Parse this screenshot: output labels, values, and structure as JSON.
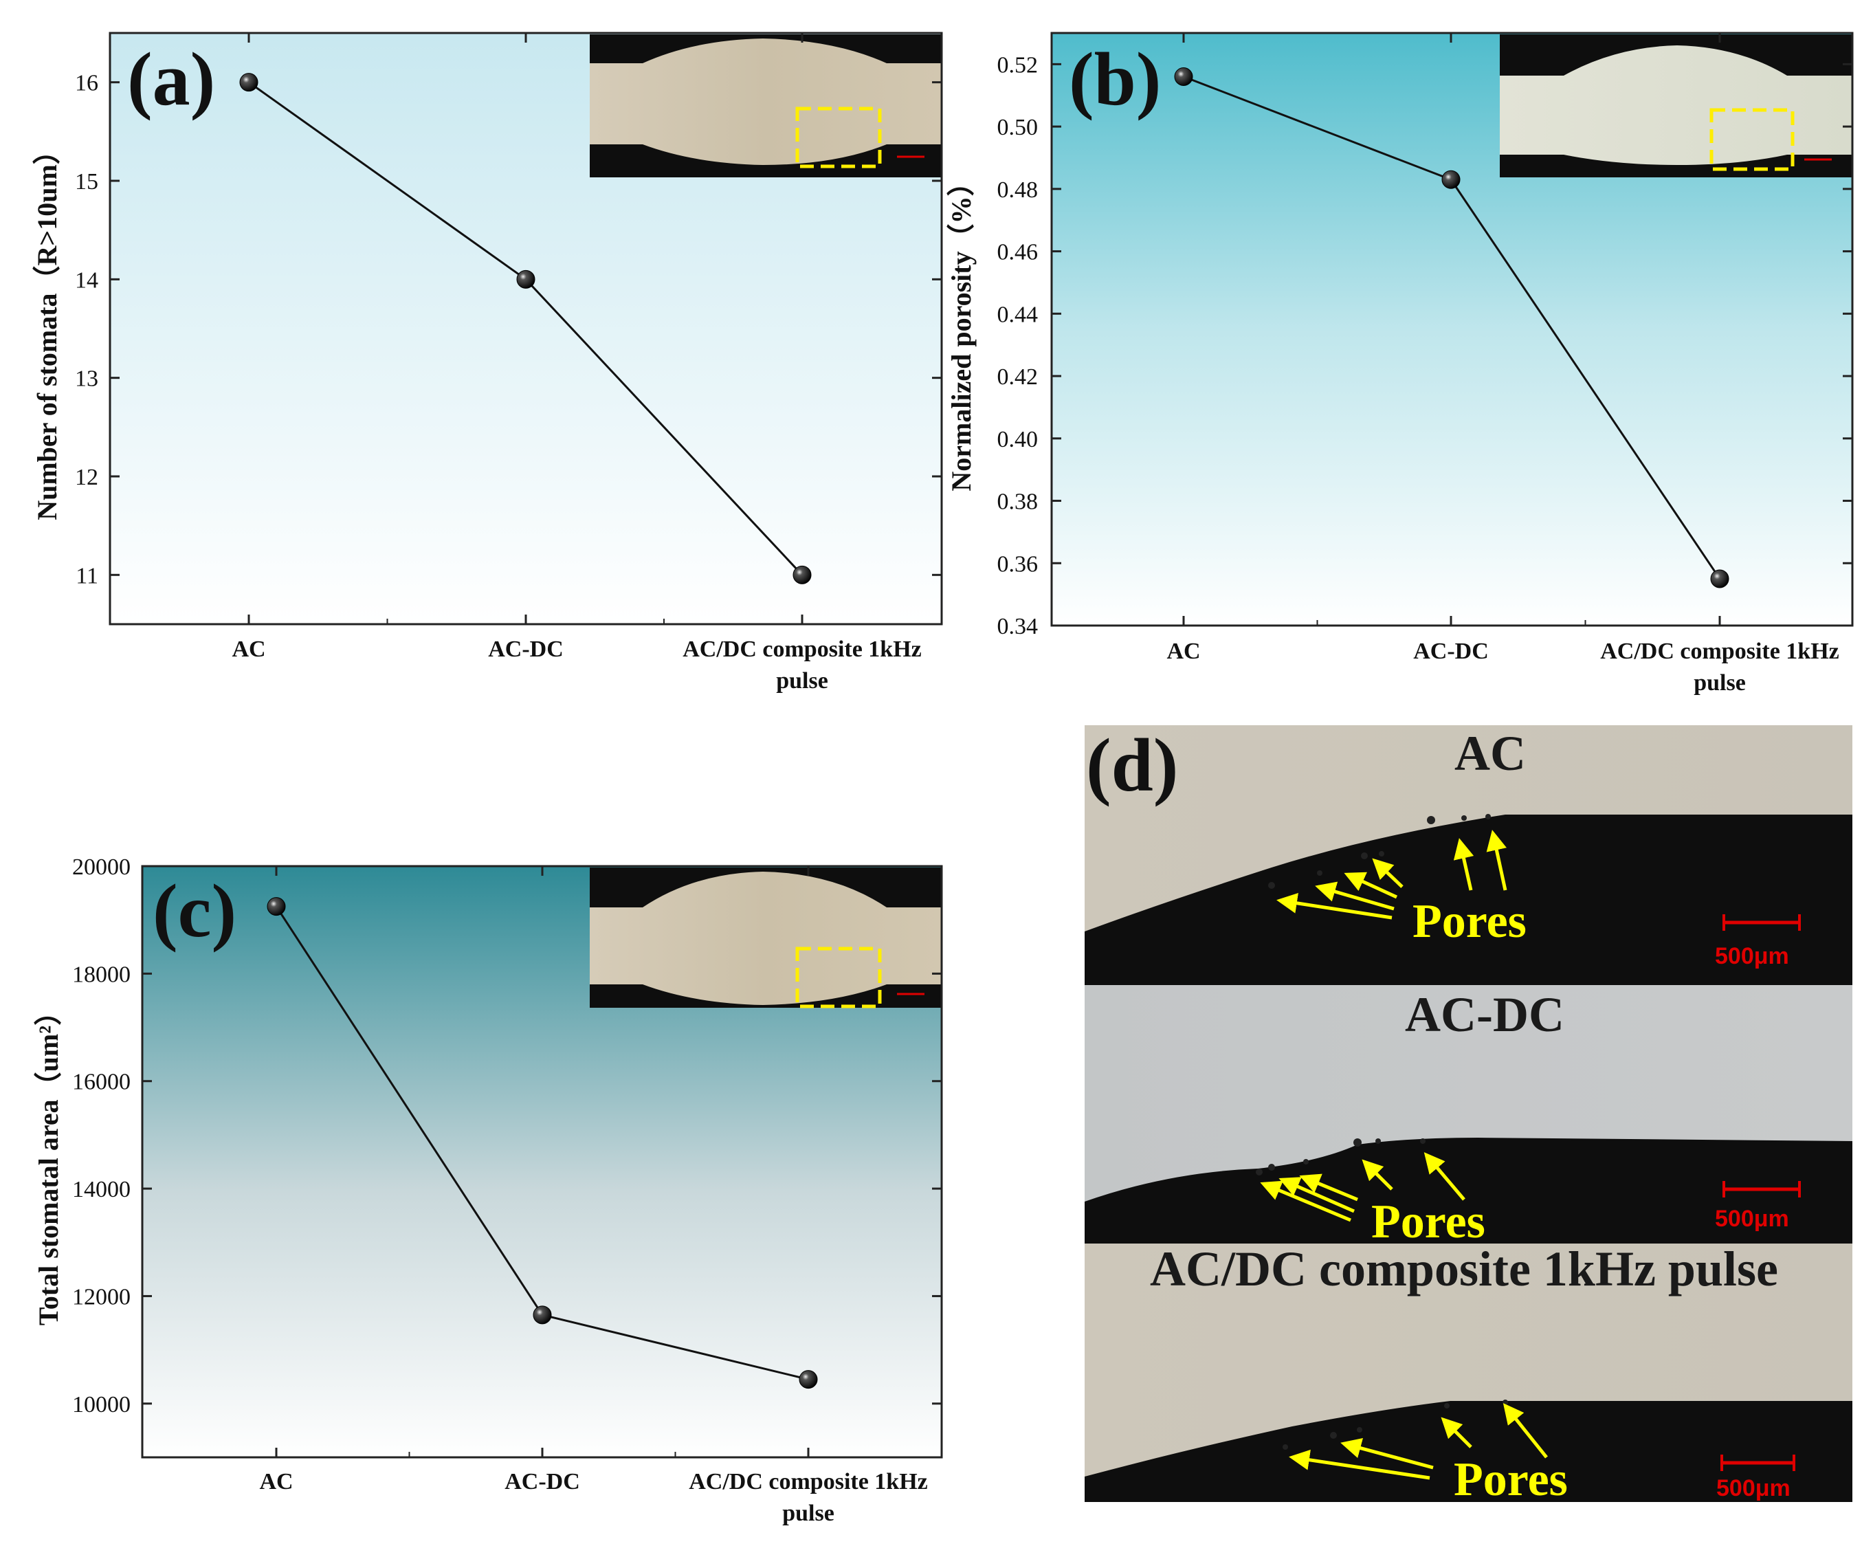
{
  "panels": {
    "a": {
      "label": "(a)",
      "ylabel": "Number of stomata（R>10um）"
    },
    "b": {
      "label": "(b)",
      "ylabel": "Normalized porosity（%）"
    },
    "c": {
      "label": "(c)",
      "ylabel": "Total stomatal area（um²）"
    },
    "d": {
      "label": "(d)",
      "sections": [
        {
          "title": "AC",
          "annotation": "Pores",
          "scale": "500μm"
        },
        {
          "title": "AC-DC",
          "annotation": "Pores",
          "scale": "500μm"
        },
        {
          "title": "AC/DC composite 1kHz pulse",
          "annotation": "Pores",
          "scale": "500μm"
        }
      ]
    }
  },
  "colors": {
    "panel_a_bg_top": "#c8e8f0",
    "panel_b_bg_top": "#4fbccc",
    "panel_c_bg_top": "#2e8a96",
    "line": "#111111",
    "marker": "#111111",
    "arrow": "#ffff00",
    "scalebar": "#e00000",
    "metal": "#cfc4ae",
    "dark_bg": "#0e0e0e"
  },
  "chart_data": [
    {
      "type": "line",
      "panel": "a",
      "categories": [
        "AC",
        "AC-DC",
        "AC/DC composite 1kHz pulse"
      ],
      "values": [
        16,
        14,
        11
      ],
      "ylabel": "Number of stomata（R>10um）",
      "ylim": [
        10.5,
        16.5
      ],
      "yticks": [
        "11",
        "12",
        "13",
        "14",
        "15",
        "16"
      ],
      "grid": false
    },
    {
      "type": "line",
      "panel": "b",
      "categories": [
        "AC",
        "AC-DC",
        "AC/DC composite 1kHz pulse"
      ],
      "values": [
        0.516,
        0.483,
        0.355
      ],
      "ylabel": "Normalized porosity（%）",
      "ylim": [
        0.34,
        0.53
      ],
      "yticks": [
        "0.34",
        "0.36",
        "0.38",
        "0.40",
        "0.42",
        "0.44",
        "0.46",
        "0.48",
        "0.50",
        "0.52"
      ],
      "grid": false
    },
    {
      "type": "line",
      "panel": "c",
      "categories": [
        "AC",
        "AC-DC",
        "AC/DC composite 1kHz pulse"
      ],
      "values": [
        19250,
        11650,
        10450
      ],
      "ylabel": "Total stomatal area（um²）",
      "ylim": [
        9000,
        20000
      ],
      "yticks": [
        "10000",
        "12000",
        "14000",
        "16000",
        "18000",
        "20000"
      ],
      "grid": false
    }
  ]
}
